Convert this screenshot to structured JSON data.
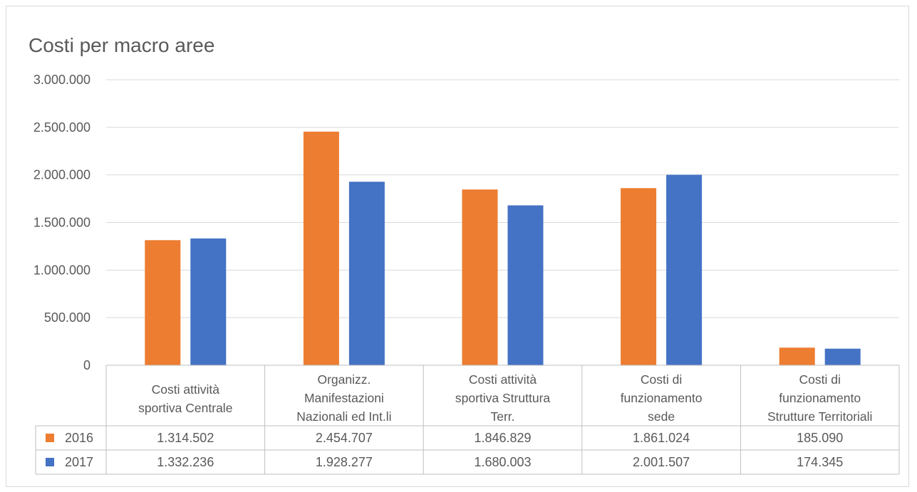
{
  "chart_data": {
    "type": "bar",
    "title": "Costi per macro aree",
    "categories": [
      [
        "Costi attività",
        "sportiva  Centrale"
      ],
      [
        "Organizz.",
        "Manifestazioni",
        "Nazionali ed Int.li"
      ],
      [
        "Costi attività",
        "sportiva  Struttura",
        "Terr."
      ],
      [
        "Costi di",
        "funzionamento",
        "sede"
      ],
      [
        "Costi di",
        "funzionamento",
        "Strutture Territoriali"
      ]
    ],
    "series": [
      {
        "name": "2016",
        "color": "#ed7d31",
        "values": [
          1314502,
          2454707,
          1846829,
          1861024,
          185090
        ],
        "labels": [
          "1.314.502",
          "2.454.707",
          "1.846.829",
          "1.861.024",
          "185.090"
        ]
      },
      {
        "name": "2017",
        "color": "#4472c4",
        "values": [
          1332236,
          1928277,
          1680003,
          2001507,
          174345
        ],
        "labels": [
          "1.332.236",
          "1.928.277",
          "1.680.003",
          "2.001.507",
          "174.345"
        ]
      }
    ],
    "y_ticks": [
      0,
      500000,
      1000000,
      1500000,
      2000000,
      2500000,
      3000000
    ],
    "y_tick_labels": [
      "0",
      "500.000",
      "1.000.000",
      "1.500.000",
      "2.000.000",
      "2.500.000",
      "3.000.000"
    ],
    "ylim": [
      0,
      3000000
    ],
    "grid": true,
    "legend": "data-table"
  }
}
